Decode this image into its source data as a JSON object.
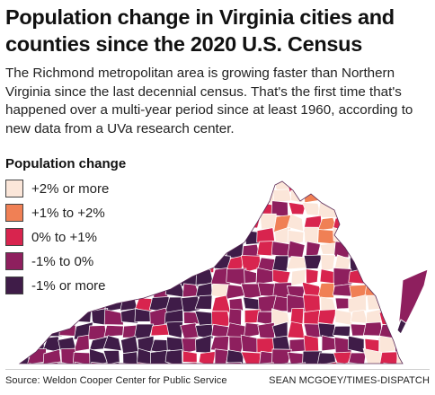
{
  "header": {
    "title": "Population change in Virginia cities and counties since the 2020 U.S. Census",
    "deck": "The Richmond metropolitan area is growing faster than Northern Virginia since the last decennial census. That's the first time that's happened over a multi-year period since at least 1960, according to new data from a UVa research center."
  },
  "legend": {
    "title": "Population change",
    "items": [
      {
        "label": "+2% or more",
        "color": "#fbe6d9"
      },
      {
        "label": "+1% to +2%",
        "color": "#f08055"
      },
      {
        "label": "0% to +1%",
        "color": "#d8244e"
      },
      {
        "label": "-1% to 0%",
        "color": "#8e1f5e"
      },
      {
        "label": "-1% or more",
        "color": "#3f1c48"
      }
    ]
  },
  "map": {
    "region": "Virginia",
    "border_color": "#ffffff"
  },
  "footer": {
    "source": "Source: Weldon Cooper Center for Public Service",
    "credit": "SEAN MCGOEY/TIMES-DISPATCH"
  }
}
